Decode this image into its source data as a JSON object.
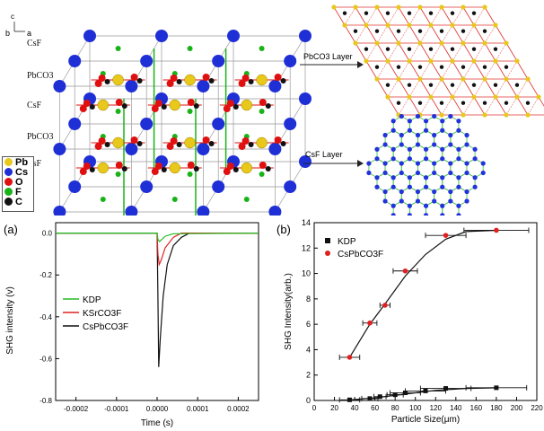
{
  "top": {
    "axes": {
      "b": "b",
      "c": "c",
      "a": "a"
    },
    "layers": [
      "CsF",
      "PbCO3",
      "CsF",
      "PbCO3",
      "CsF"
    ],
    "arrow_labels": [
      "PbCO3 Layer",
      "CsF Layer"
    ],
    "legend": [
      {
        "label": "Pb",
        "color": "#e8c81a"
      },
      {
        "label": "Cs",
        "color": "#1f2fd6"
      },
      {
        "label": "O",
        "color": "#e01010"
      },
      {
        "label": "F",
        "color": "#19b319"
      },
      {
        "label": "C",
        "color": "#111111"
      }
    ]
  },
  "chart_data": [
    {
      "panel": "(a)",
      "type": "line",
      "xlabel": "Time (s)",
      "ylabel": "SHG intensity (v)",
      "xlim": [
        -0.00025,
        0.00025
      ],
      "ylim": [
        -0.8,
        0.05
      ],
      "xticks": [
        "-0.0002",
        "-0.0001",
        "0.0000",
        "0.0001",
        "0.0002"
      ],
      "yticks": [
        "0.0",
        "-0.2",
        "-0.4",
        "-0.6",
        "-0.8"
      ],
      "legend_position": "center-left",
      "series": [
        {
          "name": "KDP",
          "color": "#22bb22",
          "x": [
            -0.00025,
            0.0,
            2e-06,
            6e-06,
            1.2e-05,
            2e-05,
            4e-05,
            0.00025
          ],
          "y": [
            0.0,
            0.0,
            -0.03,
            -0.04,
            -0.03,
            -0.015,
            -0.003,
            0.0
          ]
        },
        {
          "name": "KSrCO3F",
          "color": "#e02020",
          "x": [
            -0.00025,
            0.0,
            2e-06,
            5e-06,
            1e-05,
            2e-05,
            4e-05,
            6e-05,
            0.00025
          ],
          "y": [
            0.0,
            0.0,
            -0.1,
            -0.15,
            -0.13,
            -0.07,
            -0.02,
            0.0,
            0.0
          ]
        },
        {
          "name": "CsPbCO3F",
          "color": "#111111",
          "x": [
            -0.00025,
            0.0,
            2e-06,
            4e-06,
            8e-06,
            1.5e-05,
            2.5e-05,
            4e-05,
            6e-05,
            8e-05,
            0.00025
          ],
          "y": [
            0.0,
            0.0,
            -0.3,
            -0.64,
            -0.5,
            -0.3,
            -0.15,
            -0.06,
            -0.02,
            0.0,
            0.0
          ]
        }
      ]
    },
    {
      "panel": "(b)",
      "type": "scatter",
      "xlabel": "Particle Size(μm)",
      "ylabel": "SHG Intensity(arb.)",
      "xlim": [
        0,
        220
      ],
      "ylim": [
        0,
        14
      ],
      "xticks": [
        "0",
        "20",
        "40",
        "60",
        "80",
        "100",
        "120",
        "140",
        "160",
        "180",
        "200",
        "220"
      ],
      "yticks": [
        "0",
        "2",
        "4",
        "6",
        "8",
        "10",
        "12",
        "14"
      ],
      "legend_position": "top-left",
      "series": [
        {
          "name": "KDP",
          "color": "#111111",
          "marker": "square",
          "x": [
            35,
            55,
            65,
            80,
            90,
            110,
            130,
            180
          ],
          "y": [
            0.05,
            0.15,
            0.3,
            0.45,
            0.6,
            0.75,
            0.95,
            1.0
          ],
          "xerr": [
            10,
            8,
            6,
            8,
            15,
            20,
            25,
            30
          ]
        },
        {
          "name": "CsPbCO3F",
          "color": "#e02020",
          "marker": "circle",
          "x": [
            35,
            55,
            70,
            90,
            130,
            180
          ],
          "y": [
            3.4,
            6.1,
            7.5,
            10.2,
            13.0,
            13.4
          ],
          "xerr": [
            10,
            7,
            5,
            12,
            20,
            32
          ]
        }
      ],
      "fit_lines": [
        {
          "x": [
            35,
            55,
            70,
            90,
            110,
            130,
            150,
            180
          ],
          "y": [
            3.4,
            6.0,
            7.6,
            9.8,
            11.5,
            12.7,
            13.3,
            13.4
          ]
        },
        {
          "x": [
            35,
            60,
            90,
            120,
            150,
            180
          ],
          "y": [
            0.05,
            0.2,
            0.5,
            0.8,
            0.95,
            1.0
          ]
        }
      ]
    }
  ]
}
